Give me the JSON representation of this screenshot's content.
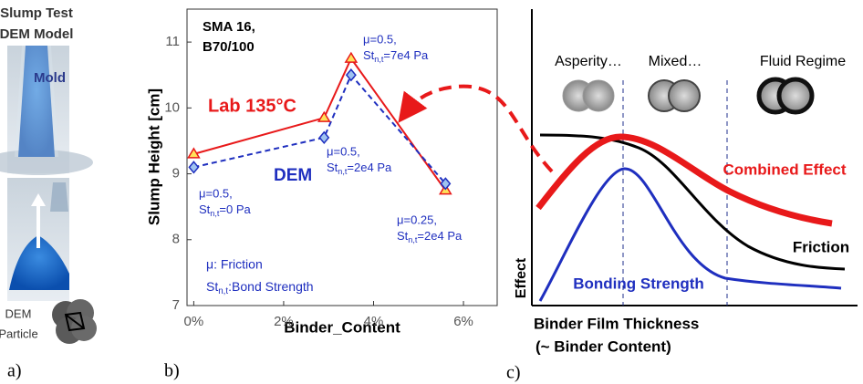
{
  "panel_a": {
    "title_lines": [
      "Slump Test",
      "DEM Model"
    ],
    "mold_label": "Mold",
    "particle_lines": [
      "DEM",
      "Particle"
    ],
    "panel_label": "a)"
  },
  "chart_data": {
    "type": "line",
    "panel_label": "b)",
    "title_lines": [
      "SMA 16,",
      "B70/100"
    ],
    "x_label": "Binder_Content",
    "y_label": "Slump Height [cm]",
    "x": [
      0,
      2.9,
      3.5,
      5.6
    ],
    "series": [
      {
        "name": "Lab 135°C",
        "color": "#e8191a",
        "marker_fill": "#ffe25a",
        "values": [
          9.3,
          9.85,
          10.75,
          8.75
        ]
      },
      {
        "name": "DEM",
        "color": "#1f2fbf",
        "marker_fill": "#9fc3f0",
        "dashed": true,
        "values": [
          9.1,
          9.55,
          10.5,
          8.85
        ]
      }
    ],
    "annotations": [
      {
        "line1": "μ=0.5,",
        "line2": [
          "St",
          "n,t",
          "=0 Pa"
        ]
      },
      {
        "line1": "μ=0.5,",
        "line2": [
          "St",
          "n,t",
          "=2e4 Pa"
        ]
      },
      {
        "line1": "μ=0.5,",
        "line2": [
          "St",
          "n,t",
          "=7e4 Pa"
        ]
      },
      {
        "line1": "μ=0.25,",
        "line2": [
          "St",
          "n,t",
          "=2e4 Pa"
        ]
      }
    ],
    "notes": [
      "μ: Friction",
      [
        "St",
        "n,t",
        ":Bond Strength"
      ]
    ],
    "xlim": [
      -0.15,
      6.75
    ],
    "ylim": [
      7,
      11.5
    ],
    "xticks": [
      {
        "value": 0,
        "label": "0%"
      },
      {
        "value": 2,
        "label": "2%"
      },
      {
        "value": 4,
        "label": "4%"
      },
      {
        "value": 6,
        "label": "6%"
      }
    ],
    "yticks": [
      7,
      8,
      9,
      10,
      11
    ]
  },
  "panel_c": {
    "regimes": [
      "Asperity…",
      "Mixed…",
      "Fluid Regime"
    ],
    "curves": [
      "Combined Effect",
      "Friction",
      "Bonding Strength"
    ],
    "y_label": "Effect",
    "x_label_lines": [
      "Binder Film Thickness",
      "(~ Binder Content)"
    ],
    "panel_label": "c)"
  }
}
